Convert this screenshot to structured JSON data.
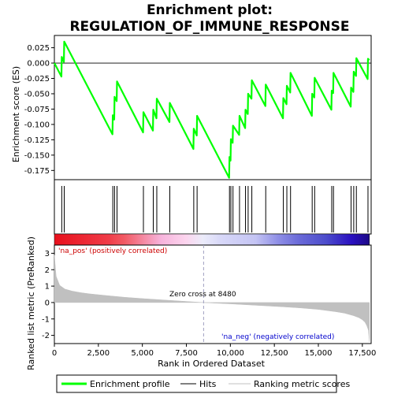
{
  "chart_data": {
    "type": "line",
    "title_line1": "Enrichment plot:",
    "title_line2": "REGULATION_OF_IMMUNE_RESPONSE",
    "es_ylabel": "Enrichment score (ES)",
    "rank_ylabel": "Ranked list metric (PreRanked)",
    "xlabel": "Rank in Ordered Dataset",
    "xlim": [
      0,
      18000
    ],
    "x_ticks": [
      0,
      2500,
      5000,
      7500,
      10000,
      12500,
      15000,
      17500
    ],
    "x_tick_labels": [
      "0",
      "2,500",
      "5,000",
      "7,500",
      "10,000",
      "12,500",
      "15,000",
      "17,500"
    ],
    "es_ylim": [
      -0.19,
      0.045
    ],
    "es_ticks": [
      0.025,
      0.0,
      -0.025,
      -0.05,
      -0.075,
      -0.1,
      -0.125,
      -0.15,
      -0.175
    ],
    "es_tick_labels": [
      "0.025",
      "0.000",
      "-0.025",
      "-0.050",
      "-0.075",
      "-0.100",
      "-0.125",
      "-0.150",
      "-0.175"
    ],
    "rank_ylim": [
      -2.5,
      3.5
    ],
    "rank_ticks": [
      3,
      2,
      1,
      0,
      -1,
      -2
    ],
    "rank_tick_labels": [
      "3",
      "2",
      "1",
      "0",
      "-1",
      "-2"
    ],
    "hits": [
      420,
      560,
      3320,
      3420,
      3560,
      5060,
      5620,
      5820,
      6560,
      7920,
      8110,
      9950,
      10030,
      10150,
      10520,
      10860,
      11010,
      11220,
      12010,
      13010,
      13210,
      13420,
      14650,
      14790,
      15760,
      15860,
      16860,
      17010,
      17160,
      17820
    ],
    "es_series": {
      "name": "Enrichment profile",
      "x": [
        0,
        400,
        420,
        540,
        560,
        3300,
        3320,
        3400,
        3420,
        3540,
        3560,
        5040,
        5060,
        5600,
        5620,
        5800,
        5820,
        6540,
        6560,
        7900,
        7920,
        8090,
        8110,
        9930,
        9950,
        10010,
        10030,
        10130,
        10150,
        10500,
        10520,
        10840,
        10860,
        10990,
        11010,
        11200,
        11220,
        11990,
        12010,
        12990,
        13010,
        13190,
        13210,
        13400,
        13420,
        14630,
        14650,
        14770,
        14790,
        15740,
        15760,
        15840,
        15860,
        16840,
        16860,
        16990,
        17010,
        17140,
        17160,
        17800,
        17820,
        17900
      ],
      "y": [
        0.0,
        -0.022,
        0.01,
        0.002,
        0.035,
        -0.116,
        -0.085,
        -0.092,
        -0.055,
        -0.062,
        -0.03,
        -0.113,
        -0.08,
        -0.11,
        -0.076,
        -0.09,
        -0.058,
        -0.096,
        -0.065,
        -0.14,
        -0.107,
        -0.118,
        -0.086,
        -0.187,
        -0.153,
        -0.159,
        -0.124,
        -0.13,
        -0.102,
        -0.117,
        -0.086,
        -0.106,
        -0.076,
        -0.083,
        -0.05,
        -0.058,
        -0.028,
        -0.07,
        -0.035,
        -0.09,
        -0.057,
        -0.067,
        -0.037,
        -0.048,
        -0.016,
        -0.086,
        -0.05,
        -0.056,
        -0.024,
        -0.076,
        -0.045,
        -0.049,
        -0.016,
        -0.071,
        -0.04,
        -0.047,
        -0.014,
        -0.021,
        0.008,
        -0.026,
        0.007,
        0.005
      ]
    },
    "rank_metric": {
      "name": "Ranked list metric (PreRanked)",
      "x": [
        0,
        100,
        300,
        600,
        1000,
        1500,
        2000,
        3000,
        4000,
        5000,
        6000,
        7000,
        8000,
        8480,
        9000,
        10000,
        11000,
        12000,
        13000,
        14000,
        15000,
        16000,
        16500,
        17000,
        17300,
        17500,
        17650,
        17750,
        17850,
        17900
      ],
      "y": [
        2.9,
        1.6,
        1.05,
        0.82,
        0.7,
        0.6,
        0.53,
        0.42,
        0.32,
        0.24,
        0.17,
        0.1,
        0.03,
        0.0,
        -0.03,
        -0.08,
        -0.14,
        -0.2,
        -0.26,
        -0.33,
        -0.42,
        -0.56,
        -0.65,
        -0.8,
        -0.92,
        -1.05,
        -1.2,
        -1.4,
        -1.7,
        -2.4
      ]
    },
    "zero_cross_rank": 8480,
    "zero_cross_label": "Zero cross at 8480",
    "pos_label": "'na_pos' (positively correlated)",
    "neg_label": "'na_neg' (negatively correlated)",
    "legend": [
      {
        "label": "Enrichment profile",
        "color": "#00ff00"
      },
      {
        "label": "Hits",
        "color": "#000000"
      },
      {
        "label": "Ranking metric scores",
        "color": "#c0c0c0"
      }
    ],
    "colors": {
      "es_line": "#00ff00",
      "hit": "#000000",
      "metric_fill": "#c0c0c0",
      "pos_label": "#cc0000",
      "neg_label": "#0000cc",
      "zero_line": "#a0a0c0"
    },
    "heatmap_stops": [
      {
        "x": 0,
        "color": "#e8101c"
      },
      {
        "x": 3100,
        "color": "#f03c48"
      },
      {
        "x": 4000,
        "color": "#f25a64"
      },
      {
        "x": 6100,
        "color": "#f7b4dc"
      },
      {
        "x": 7500,
        "color": "#fcd4ee"
      },
      {
        "x": 8480,
        "color": "#ececfa"
      },
      {
        "x": 9500,
        "color": "#d8d8f8"
      },
      {
        "x": 11500,
        "color": "#c4c4f4"
      },
      {
        "x": 12800,
        "color": "#8e8ee6"
      },
      {
        "x": 14000,
        "color": "#6a6ad8"
      },
      {
        "x": 15500,
        "color": "#4d4dcc"
      },
      {
        "x": 17000,
        "color": "#2a10c0"
      },
      {
        "x": 17900,
        "color": "#1e0a8c"
      }
    ]
  }
}
